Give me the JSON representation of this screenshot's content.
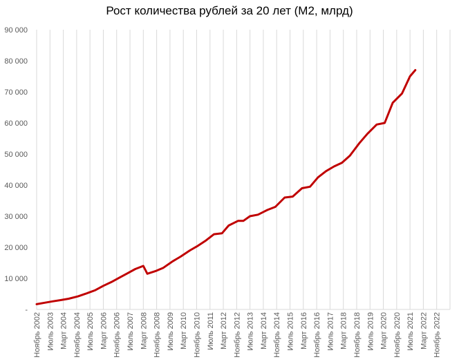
{
  "chart_data": {
    "type": "line",
    "title": "Рост количества рублей за 20 лет (М2, млрд)",
    "xlabel": "",
    "ylabel": "",
    "ylim": [
      0,
      90000
    ],
    "y_ticks": [
      "-",
      "10 000",
      "20 000",
      "30 000",
      "40 000",
      "50 000",
      "60 000",
      "70 000",
      "80 000",
      "90 000"
    ],
    "y_tick_values": [
      0,
      10000,
      20000,
      30000,
      40000,
      50000,
      60000,
      70000,
      80000,
      90000
    ],
    "x_tick_labels": [
      "Ноябрь 2002",
      "Июль 2003",
      "Март 2004",
      "Ноябрь 2004",
      "Июль 2005",
      "Март 2006",
      "Ноябрь 2006",
      "Июль 2007",
      "Март 2008",
      "Ноябрь 2008",
      "Июль 2009",
      "Март 2010",
      "Ноябрь 2010",
      "Июль 2011",
      "Март 2012",
      "Ноябрь 2012",
      "Июль 2013",
      "Март 2014",
      "Ноябрь 2014",
      "Июль 2015",
      "Март 2016",
      "Ноябрь 2016",
      "Июль 2017",
      "Март 2018",
      "Ноябрь 2018",
      "Июль 2019",
      "Март 2020",
      "Ноябрь 2020",
      "Июль 2021",
      "Март 2022",
      "Ноябрь 2022"
    ],
    "grid": "vertical",
    "line_color": "#c00000",
    "series": [
      {
        "values": [
          1700,
          2150,
          2600,
          3000,
          3450,
          4200,
          5100,
          6200,
          7600,
          8800,
          10200,
          11600,
          13000,
          14000,
          11500,
          12300,
          13400,
          15500,
          17000,
          19000,
          20500,
          22200,
          24200,
          24500,
          27000,
          28500,
          28500,
          30000,
          30500,
          32000,
          33000,
          36000,
          36300,
          39000,
          39500,
          42500,
          44500,
          46000,
          47200,
          49500,
          53500,
          56500,
          59500,
          60000,
          66500,
          69500,
          75000,
          77000
        ],
        "x": [
          0,
          0.6,
          1.2,
          1.8,
          2.4,
          3.1,
          3.7,
          4.4,
          5.0,
          5.6,
          6.2,
          6.8,
          7.4,
          8.0,
          8.3,
          8.9,
          9.5,
          10.2,
          10.8,
          11.5,
          12.1,
          12.7,
          13.3,
          13.9,
          14.4,
          15.1,
          15.5,
          16.0,
          16.6,
          17.3,
          17.9,
          18.6,
          19.2,
          19.9,
          20.5,
          21.1,
          21.7,
          22.3,
          22.9,
          23.5,
          24.2,
          24.8,
          25.5,
          26.1,
          26.7,
          27.4,
          28.0,
          28.4
        ]
      }
    ]
  }
}
